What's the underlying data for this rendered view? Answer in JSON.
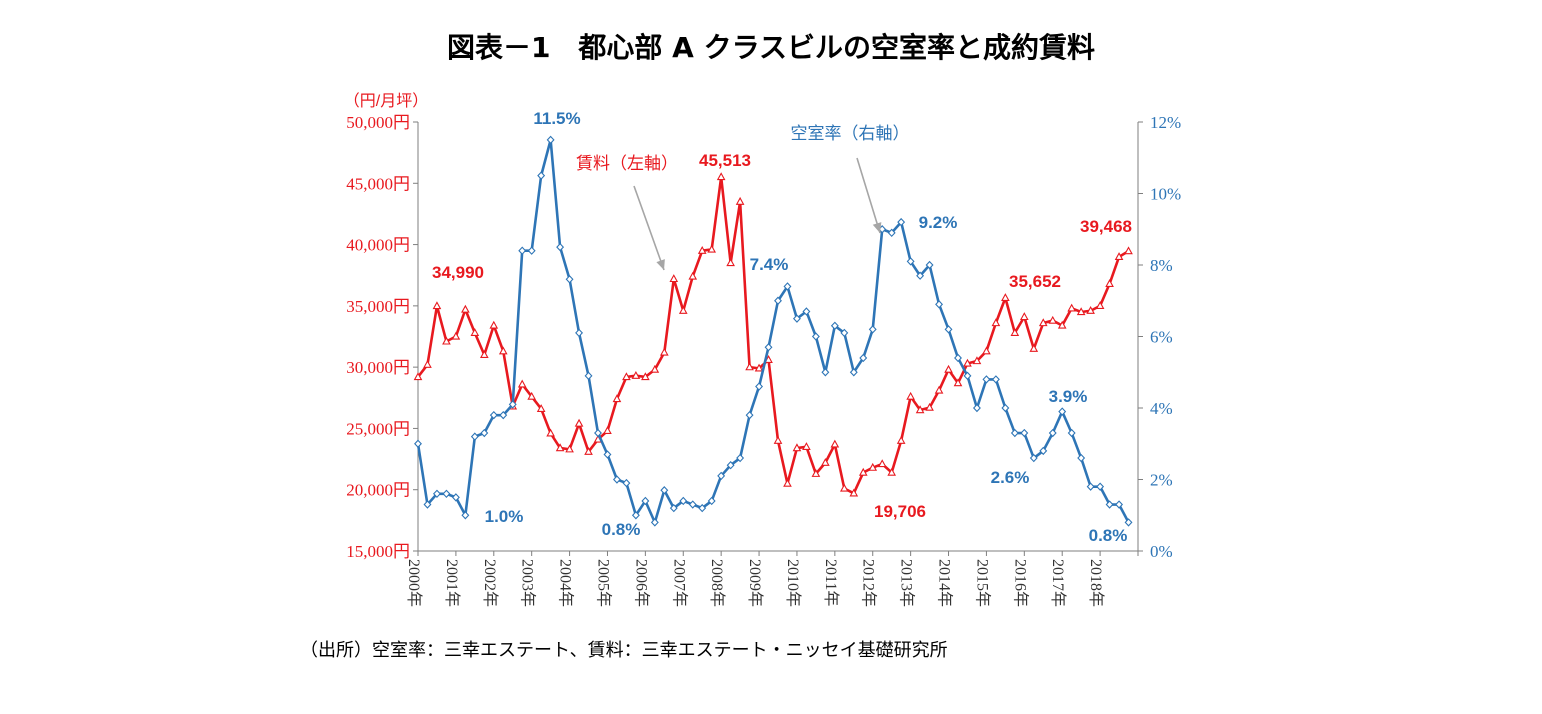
{
  "title": "図表－1　都心部 A クラスビルの空室率と成約賃料",
  "source": "（出所）空室率：三幸エステート、賃料：三幸エステート・ニッセイ基礎研究所",
  "chart_data": {
    "type": "line",
    "title": "図表－1　都心部 A クラスビルの空室率と成約賃料",
    "left_axis": {
      "unit_label": "（円/月坪）",
      "min": 15000,
      "max": 50000,
      "step": 5000,
      "tick_labels": [
        "15,000円",
        "20,000円",
        "25,000円",
        "30,000円",
        "35,000円",
        "40,000円",
        "45,000円",
        "50,000円"
      ],
      "color": "#e8191f"
    },
    "right_axis": {
      "min": 0,
      "max": 12,
      "step": 2,
      "tick_labels": [
        "0%",
        "2%",
        "4%",
        "6%",
        "8%",
        "10%",
        "12%"
      ],
      "color": "#2e75b6"
    },
    "x_axis": {
      "start": 2000.0,
      "end": 2019.0,
      "tick_labels": [
        "2000年",
        "2001年",
        "2002年",
        "2003年",
        "2004年",
        "2005年",
        "2006年",
        "2007年",
        "2008年",
        "2009年",
        "2010年",
        "2011年",
        "2012年",
        "2013年",
        "2014年",
        "2015年",
        "2016年",
        "2017年",
        "2018年"
      ]
    },
    "series": [
      {
        "name": "賃料（左軸）",
        "axis": "left",
        "color": "#e8191f",
        "marker": "triangle",
        "x_start": 2000.0,
        "x_step": 0.25,
        "values": [
          29200,
          30200,
          34990,
          32100,
          32500,
          34700,
          32800,
          31000,
          33400,
          31300,
          26800,
          28600,
          27600,
          26600,
          24600,
          23400,
          23300,
          25400,
          23100,
          24100,
          24800,
          27400,
          29200,
          29300,
          29200,
          29800,
          31200,
          37200,
          34600,
          37400,
          39500,
          39600,
          45513,
          38500,
          43500,
          30000,
          29900,
          30600,
          24000,
          20500,
          23400,
          23500,
          21300,
          22200,
          23700,
          20100,
          19706,
          21400,
          21800,
          22100,
          21400,
          24000,
          27600,
          26500,
          26700,
          28100,
          29800,
          28700,
          30300,
          30500,
          31300,
          33600,
          35652,
          32800,
          34100,
          31500,
          33600,
          33800,
          33400,
          34800,
          34500,
          34600,
          35000,
          36800,
          39000,
          39468
        ]
      },
      {
        "name": "空室率（右軸）",
        "axis": "right",
        "color": "#2e75b6",
        "marker": "diamond",
        "x_start": 2000.0,
        "x_step": 0.25,
        "values": [
          3.0,
          1.3,
          1.6,
          1.6,
          1.5,
          1.0,
          3.2,
          3.3,
          3.8,
          3.8,
          4.1,
          8.4,
          8.4,
          10.5,
          11.5,
          8.5,
          7.6,
          6.1,
          4.9,
          3.3,
          2.7,
          2.0,
          1.9,
          1.0,
          1.4,
          0.8,
          1.7,
          1.2,
          1.4,
          1.3,
          1.2,
          1.4,
          2.1,
          2.4,
          2.6,
          3.8,
          4.6,
          5.7,
          7.0,
          7.4,
          6.5,
          6.7,
          6.0,
          5.0,
          6.3,
          6.1,
          5.0,
          5.4,
          6.2,
          9.0,
          8.9,
          9.2,
          8.1,
          7.7,
          8.0,
          6.9,
          6.2,
          5.4,
          4.9,
          4.0,
          4.8,
          4.8,
          4.0,
          3.3,
          3.3,
          2.6,
          2.8,
          3.3,
          3.9,
          3.3,
          2.6,
          1.8,
          1.8,
          1.3,
          1.3,
          0.8
        ]
      }
    ],
    "annotations": [
      {
        "text": "34,990",
        "series": "賃料（左軸）",
        "color": "#e8191f"
      },
      {
        "text": "45,513",
        "series": "賃料（左軸）",
        "color": "#e8191f"
      },
      {
        "text": "19,706",
        "series": "賃料（左軸）",
        "color": "#e8191f"
      },
      {
        "text": "35,652",
        "series": "賃料（左軸）",
        "color": "#e8191f"
      },
      {
        "text": "39,468",
        "series": "賃料（左軸）",
        "color": "#e8191f"
      },
      {
        "text": "11.5%",
        "series": "空室率（右軸）",
        "color": "#2e75b6"
      },
      {
        "text": "1.0%",
        "series": "空室率（右軸）",
        "color": "#2e75b6"
      },
      {
        "text": "0.8%",
        "series": "空室率（右軸）",
        "color": "#2e75b6"
      },
      {
        "text": "7.4%",
        "series": "空室率（右軸）",
        "color": "#2e75b6"
      },
      {
        "text": "9.2%",
        "series": "空室率（右軸）",
        "color": "#2e75b6"
      },
      {
        "text": "2.6%",
        "series": "空室率（右軸）",
        "color": "#2e75b6"
      },
      {
        "text": "3.9%",
        "series": "空室率（右軸）",
        "color": "#2e75b6"
      },
      {
        "text": "0.8%",
        "series": "空室率（右軸）",
        "color": "#2e75b6"
      }
    ],
    "series_callouts": [
      {
        "text": "賃料（左軸）",
        "color": "#e8191f"
      },
      {
        "text": "空室率（右軸）",
        "color": "#2e75b6"
      }
    ]
  }
}
